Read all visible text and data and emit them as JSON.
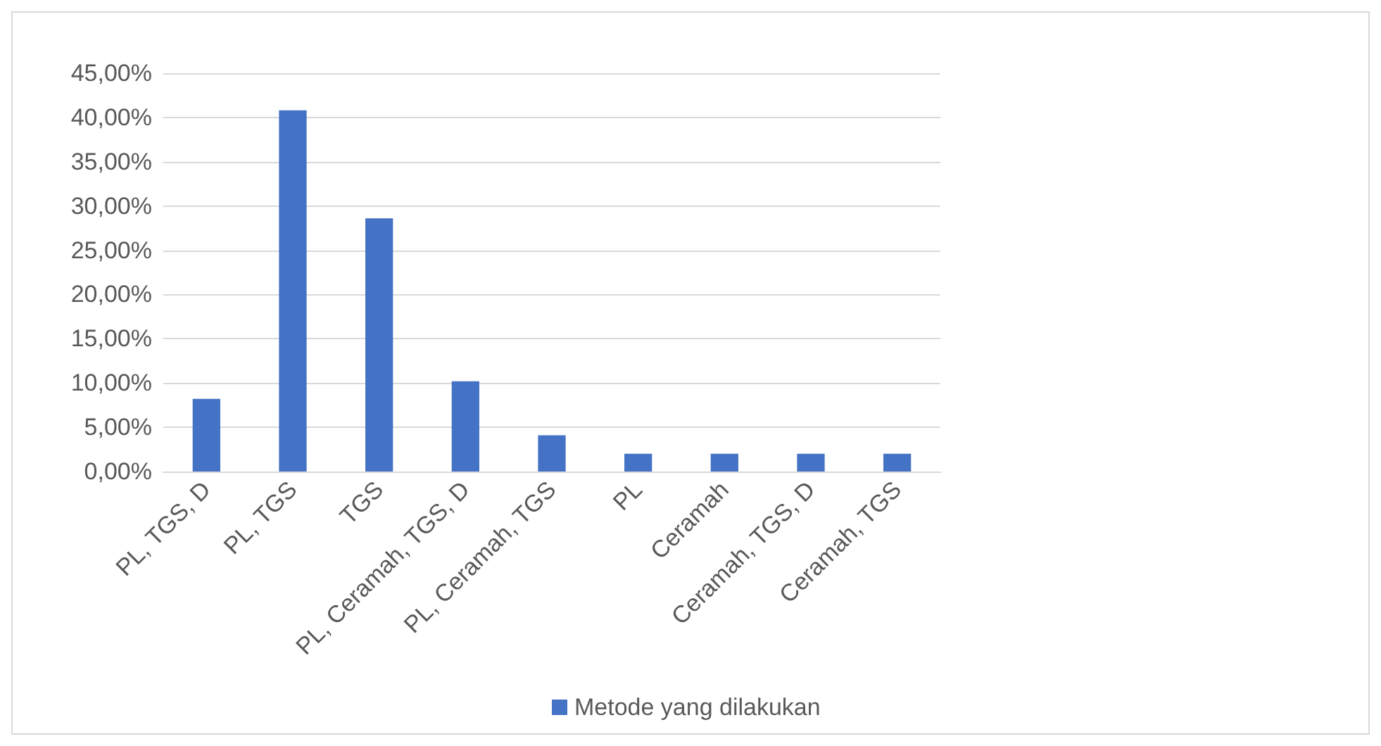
{
  "chart_data": {
    "type": "bar",
    "categories": [
      "PL, TGS, D",
      "PL, TGS",
      "TGS",
      "PL, Ceramah, TGS, D",
      "PL, Ceramah, TGS",
      "PL",
      "Ceramah",
      "Ceramah, TGS, D",
      "Ceramah, TGS"
    ],
    "series": [
      {
        "name": "Metode yang dilakukan",
        "color": "#4472c4",
        "values": [
          8.2,
          40.8,
          28.6,
          10.2,
          4.1,
          2.0,
          2.0,
          2.0,
          2.0
        ]
      }
    ],
    "ylim": [
      0,
      45
    ],
    "yticks": [
      {
        "value": 0,
        "label": "0,00%"
      },
      {
        "value": 5,
        "label": "5,00%"
      },
      {
        "value": 10,
        "label": "10,00%"
      },
      {
        "value": 15,
        "label": "15,00%"
      },
      {
        "value": 20,
        "label": "20,00%"
      },
      {
        "value": 25,
        "label": "25,00%"
      },
      {
        "value": 30,
        "label": "30,00%"
      },
      {
        "value": 35,
        "label": "35,00%"
      },
      {
        "value": 40,
        "label": "40,00%"
      },
      {
        "value": 45,
        "label": "45,00%"
      }
    ],
    "grid": "y",
    "legend": "bottom"
  }
}
